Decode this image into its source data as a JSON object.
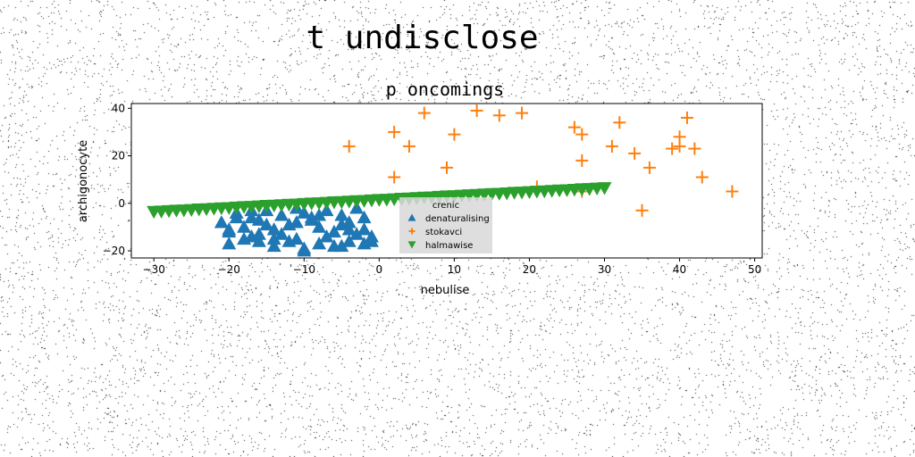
{
  "figure": {
    "suptitle": "t undisclose"
  },
  "chart_data": {
    "type": "scatter",
    "title": "p oncomings",
    "xlabel": "nebulise",
    "ylabel": "archigonocyte",
    "xlim": [
      -33,
      51
    ],
    "ylim": [
      -23,
      42
    ],
    "xticks": [
      -30,
      -20,
      -10,
      0,
      10,
      20,
      30,
      40,
      50
    ],
    "yticks": [
      -20,
      0,
      20,
      40
    ],
    "grid": false,
    "legend": {
      "placement": "lower-center",
      "title": "crenic"
    },
    "series": [
      {
        "name": "denaturalising",
        "marker": "triangle-up",
        "color": "#1f77b4",
        "x": [
          -21,
          -20,
          -19,
          -18,
          -17,
          -16,
          -15,
          -14,
          -13,
          -12,
          -11,
          -10,
          -9,
          -8,
          -7,
          -6,
          -5,
          -4,
          -3,
          -2,
          -1,
          -20,
          -18,
          -16,
          -14,
          -12,
          -10,
          -8,
          -6,
          -4,
          -2,
          -19,
          -17,
          -15,
          -13,
          -11,
          -9,
          -7,
          -5,
          -3,
          -1,
          -20,
          -17,
          -14,
          -11,
          -8,
          -5,
          -2,
          -16,
          -10,
          -4
        ],
        "y": [
          -8,
          -12,
          -6,
          -10,
          -14,
          -7,
          -3,
          -11,
          -5,
          -9,
          -15,
          -4,
          -7,
          -10,
          -3,
          -12,
          -5,
          -8,
          -2,
          -11,
          -14,
          -17,
          -15,
          -16,
          -18,
          -16,
          -19,
          -17,
          -18,
          -16,
          -17,
          -4,
          -6,
          -9,
          -13,
          -2,
          -6,
          -14,
          -9,
          -13,
          -16,
          -11,
          -3,
          -15,
          -8,
          -5,
          -18,
          -6,
          -13,
          -20,
          -11
        ]
      },
      {
        "name": "stokavci",
        "marker": "plus",
        "color": "#ff7f0e",
        "x": [
          -4,
          2,
          2,
          4,
          6,
          9,
          10,
          13,
          16,
          19,
          21,
          26,
          27,
          27,
          27,
          31,
          32,
          34,
          35,
          36,
          39,
          40,
          40,
          41,
          42,
          43,
          47
        ],
        "y": [
          24,
          30,
          11,
          24,
          38,
          15,
          29,
          39,
          37,
          38,
          7,
          32,
          29,
          18,
          5,
          24,
          34,
          21,
          -3,
          15,
          23,
          28,
          24,
          36,
          23,
          11,
          5
        ]
      },
      {
        "name": "halmawise",
        "marker": "triangle-down",
        "color": "#2ca02c",
        "x": [
          -30,
          -29,
          -28,
          -27,
          -26,
          -25,
          -24,
          -23,
          -22,
          -21,
          -20,
          -19,
          -18,
          -17,
          -16,
          -15,
          -14,
          -13,
          -12,
          -11,
          -10,
          -9,
          -8,
          -7,
          -6,
          -5,
          -4,
          -3,
          -2,
          -1,
          0,
          1,
          2,
          3,
          4,
          5,
          6,
          7,
          8,
          9,
          10,
          11,
          12,
          13,
          14,
          15,
          16,
          17,
          18,
          19,
          20,
          21,
          22,
          23,
          24,
          25,
          26,
          27,
          28,
          29,
          30
        ],
        "y": [
          -3.5,
          -3.4,
          -3.2,
          -3.0,
          -2.9,
          -2.7,
          -2.5,
          -2.4,
          -2.2,
          -2.0,
          -1.9,
          -1.7,
          -1.5,
          -1.4,
          -1.2,
          -1.0,
          -0.9,
          -0.7,
          -0.5,
          -0.4,
          -0.2,
          0.0,
          0.1,
          0.3,
          0.5,
          0.6,
          0.8,
          1.0,
          1.1,
          1.3,
          1.5,
          1.6,
          1.8,
          2.0,
          2.1,
          2.3,
          2.5,
          2.6,
          2.8,
          3.0,
          3.1,
          3.3,
          3.5,
          3.6,
          3.8,
          4.0,
          4.1,
          4.3,
          4.5,
          4.6,
          4.8,
          5.0,
          5.1,
          5.3,
          5.5,
          5.6,
          5.8,
          6.0,
          6.1,
          6.3,
          6.5
        ]
      }
    ]
  }
}
